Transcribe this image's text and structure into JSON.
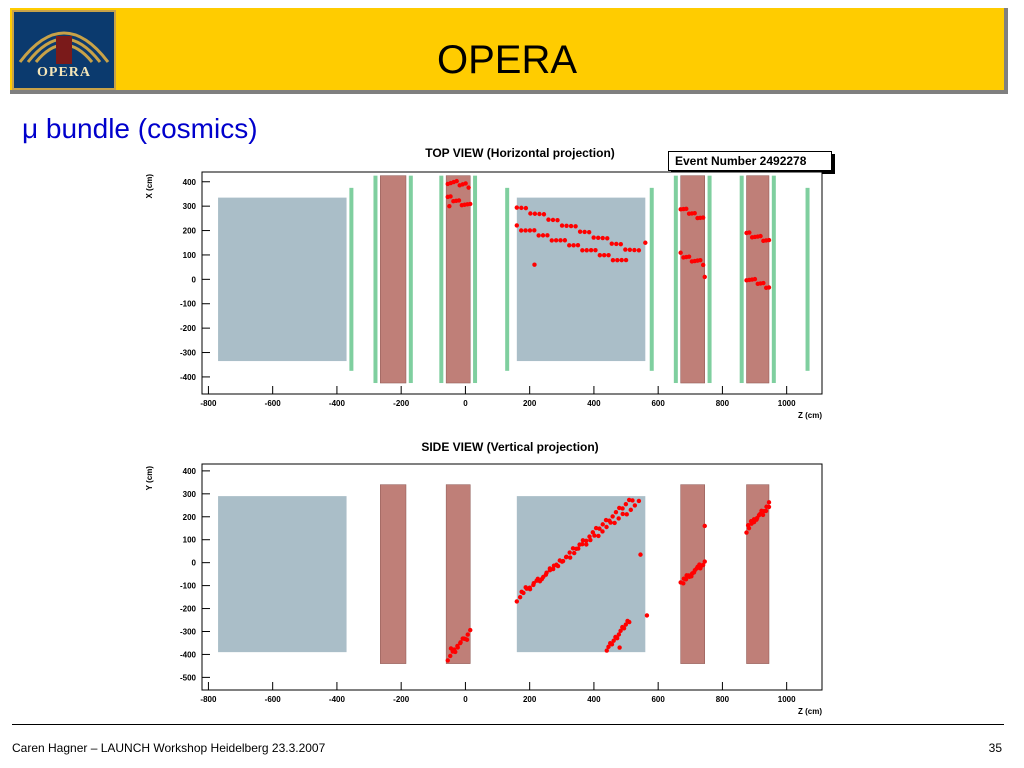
{
  "header": {
    "title": "OPERA",
    "logo_text": "OPERA",
    "logo_icon": "opera-theatre-logo-icon",
    "banner_color": "#ffcc00"
  },
  "slide": {
    "title": "μ bundle (cosmics)"
  },
  "event_label": "Event Number 2492278",
  "footer": {
    "text": "Caren Hagner – LAUNCH Workshop Heidelberg 23.3.2007",
    "page": "35"
  },
  "colors": {
    "target": "#aabec8",
    "magnet": "#bf7f78",
    "tracker": "#7fcf9f",
    "hit": "#ff0000"
  },
  "chart_data": [
    {
      "id": "top",
      "type": "scatter",
      "title": "TOP VIEW (Horizontal projection)",
      "xlabel": "Z (cm)",
      "ylabel": "X (cm)",
      "xlim": [
        -820,
        1110
      ],
      "ylim": [
        -470,
        440
      ],
      "xticks": [
        -800,
        -600,
        -400,
        -200,
        0,
        200,
        400,
        600,
        800,
        1000
      ],
      "yticks": [
        400,
        300,
        200,
        100,
        0,
        -100,
        -200,
        -300,
        -400
      ],
      "targets": [
        {
          "z": [
            -770,
            -370
          ],
          "y": [
            -335,
            335
          ]
        },
        {
          "z": [
            160,
            560
          ],
          "y": [
            -335,
            335
          ]
        }
      ],
      "magnets": [
        {
          "z": [
            -265,
            -185
          ],
          "y": [
            -425,
            425
          ]
        },
        {
          "z": [
            -60,
            15
          ],
          "y": [
            -425,
            425
          ]
        },
        {
          "z": [
            670,
            745
          ],
          "y": [
            -425,
            425
          ]
        },
        {
          "z": [
            875,
            945
          ],
          "y": [
            -425,
            425
          ]
        }
      ],
      "trackers": [
        {
          "z": -355,
          "y": [
            -375,
            375
          ]
        },
        {
          "z": -280,
          "y": [
            -425,
            425
          ]
        },
        {
          "z": -170,
          "y": [
            -425,
            425
          ]
        },
        {
          "z": -75,
          "y": [
            -425,
            425
          ]
        },
        {
          "z": 30,
          "y": [
            -425,
            425
          ]
        },
        {
          "z": 130,
          "y": [
            -375,
            375
          ]
        },
        {
          "z": 580,
          "y": [
            -375,
            375
          ]
        },
        {
          "z": 655,
          "y": [
            -425,
            425
          ]
        },
        {
          "z": 760,
          "y": [
            -425,
            425
          ]
        },
        {
          "z": 860,
          "y": [
            -425,
            425
          ]
        },
        {
          "z": 960,
          "y": [
            -425,
            425
          ]
        },
        {
          "z": 1065,
          "y": [
            -375,
            375
          ]
        }
      ],
      "tracks": [
        {
          "z0": -55,
          "y0": 400,
          "z1": 10,
          "y1": 385,
          "n": 8
        },
        {
          "z0": -55,
          "y0": 335,
          "z1": 15,
          "y1": 300,
          "n": 9
        },
        {
          "z0": 160,
          "y0": 300,
          "z1": 540,
          "y1": 110,
          "n": 28
        },
        {
          "z0": 160,
          "y0": 215,
          "z1": 500,
          "y1": 70,
          "n": 26
        },
        {
          "z0": 670,
          "y0": 290,
          "z1": 740,
          "y1": 250,
          "n": 9
        },
        {
          "z0": 670,
          "y0": 100,
          "z1": 740,
          "y1": 65,
          "n": 9
        },
        {
          "z0": 875,
          "y0": 190,
          "z1": 945,
          "y1": 155,
          "n": 9
        },
        {
          "z0": 875,
          "y0": 5,
          "z1": 945,
          "y1": -30,
          "n": 9
        }
      ],
      "hits": [
        [
          -50,
          300
        ],
        [
          215,
          60
        ],
        [
          560,
          150
        ],
        [
          745,
          10
        ]
      ]
    },
    {
      "id": "side",
      "type": "scatter",
      "title": "SIDE VIEW (Vertical projection)",
      "xlabel": "Z (cm)",
      "ylabel": "Y (cm)",
      "xlim": [
        -820,
        1110
      ],
      "ylim": [
        -555,
        430
      ],
      "xticks": [
        -800,
        -600,
        -400,
        -200,
        0,
        200,
        400,
        600,
        800,
        1000
      ],
      "yticks": [
        400,
        300,
        200,
        100,
        0,
        -100,
        -200,
        -300,
        -400,
        -500
      ],
      "targets": [
        {
          "z": [
            -770,
            -370
          ],
          "y": [
            -390,
            290
          ]
        },
        {
          "z": [
            160,
            560
          ],
          "y": [
            -390,
            290
          ]
        }
      ],
      "magnets": [
        {
          "z": [
            -265,
            -185
          ],
          "y": [
            -440,
            340
          ]
        },
        {
          "z": [
            -60,
            15
          ],
          "y": [
            -440,
            340
          ]
        },
        {
          "z": [
            670,
            745
          ],
          "y": [
            -440,
            340
          ]
        },
        {
          "z": [
            875,
            945
          ],
          "y": [
            -440,
            340
          ]
        }
      ],
      "trackers": [],
      "tracks": [
        {
          "z0": 160,
          "y0": -160,
          "z1": 520,
          "y1": 280,
          "n": 36
        },
        {
          "z0": 175,
          "y0": -130,
          "z1": 540,
          "y1": 260,
          "n": 30
        },
        {
          "z0": -55,
          "y0": -420,
          "z1": 15,
          "y1": -300,
          "n": 10
        },
        {
          "z0": -45,
          "y0": -380,
          "z1": 5,
          "y1": -330,
          "n": 6
        },
        {
          "z0": 440,
          "y0": -380,
          "z1": 510,
          "y1": -250,
          "n": 14
        },
        {
          "z0": 670,
          "y0": -95,
          "z1": 745,
          "y1": 5,
          "n": 10
        },
        {
          "z0": 680,
          "y0": -70,
          "z1": 740,
          "y1": -10,
          "n": 8
        },
        {
          "z0": 875,
          "y0": 140,
          "z1": 945,
          "y1": 260,
          "n": 10
        },
        {
          "z0": 880,
          "y0": 160,
          "z1": 945,
          "y1": 240,
          "n": 8
        }
      ],
      "hits": [
        [
          545,
          35
        ],
        [
          565,
          -230
        ],
        [
          745,
          160
        ],
        [
          480,
          -370
        ]
      ]
    }
  ]
}
